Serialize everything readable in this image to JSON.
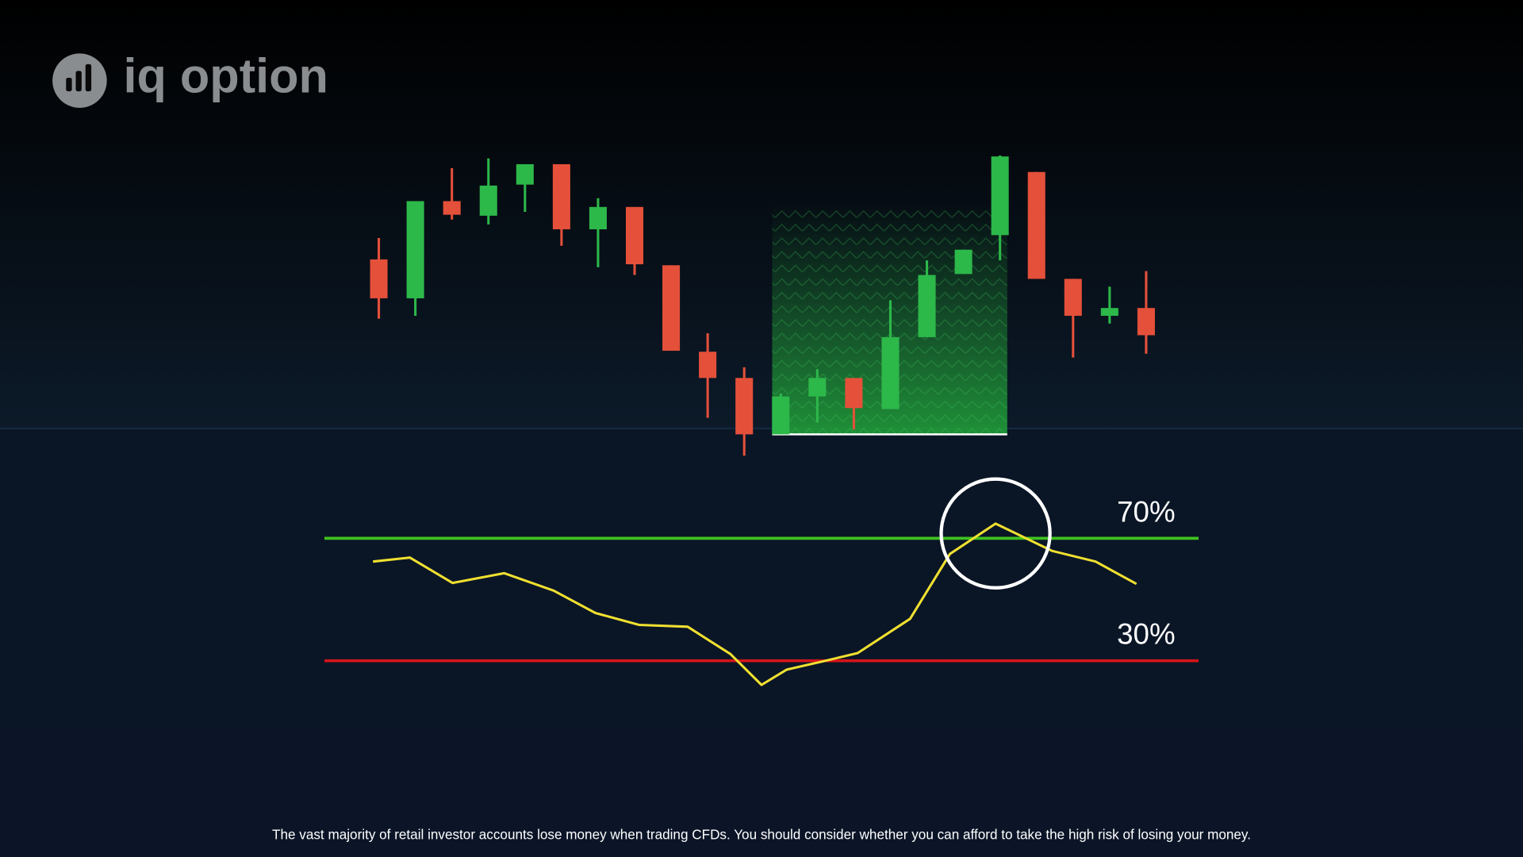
{
  "logo": "iq option",
  "disclaimer": "The vast majority of retail investor accounts lose money when trading CFDs. You should consider whether you can afford to take the high risk of losing your money.",
  "chart_data": [
    {
      "type": "candlestick",
      "up_color": "#2db84a",
      "down_color": "#e5503a",
      "ylim": [
        0,
        330
      ],
      "open": [
        213,
        173,
        273,
        258,
        290,
        311,
        244,
        267,
        207,
        118,
        91,
        33,
        72,
        91,
        59,
        133,
        198,
        238,
        303,
        193,
        155,
        163
      ],
      "high": [
        235,
        273,
        307,
        317,
        311,
        311,
        276,
        267,
        207,
        137,
        102,
        75,
        100,
        91,
        171,
        212,
        223,
        320,
        303,
        193,
        185,
        201
      ],
      "low": [
        152,
        155,
        254,
        249,
        262,
        227,
        205,
        197,
        119,
        50,
        11,
        33,
        45,
        38,
        59,
        133,
        198,
        212,
        193,
        112,
        147,
        116
      ],
      "close": [
        173,
        273,
        259,
        289,
        311,
        244,
        267,
        208,
        119,
        91,
        33,
        72,
        91,
        60,
        133,
        197,
        223,
        319,
        193,
        155,
        163,
        135
      ]
    },
    {
      "type": "line",
      "color": "#f0e030",
      "xlim": [
        334,
        1234
      ],
      "ylim": [
        10,
        80
      ],
      "levels": [
        {
          "value": 70,
          "label": "70%",
          "color": "#3fc21f"
        },
        {
          "value": 30,
          "label": "30%",
          "color": "#d4141a"
        }
      ],
      "x": [
        384,
        422,
        466,
        519,
        570,
        613,
        658,
        708,
        752,
        784,
        810,
        846,
        883,
        937,
        978,
        1025,
        1083,
        1128,
        1170
      ],
      "values": [
        62.4,
        63.7,
        55.4,
        58.6,
        52.9,
        45.6,
        41.7,
        41.1,
        32.2,
        22.1,
        27.1,
        29.7,
        32.5,
        43.7,
        64.9,
        74.8,
        65.9,
        62.4,
        55.1
      ]
    }
  ]
}
